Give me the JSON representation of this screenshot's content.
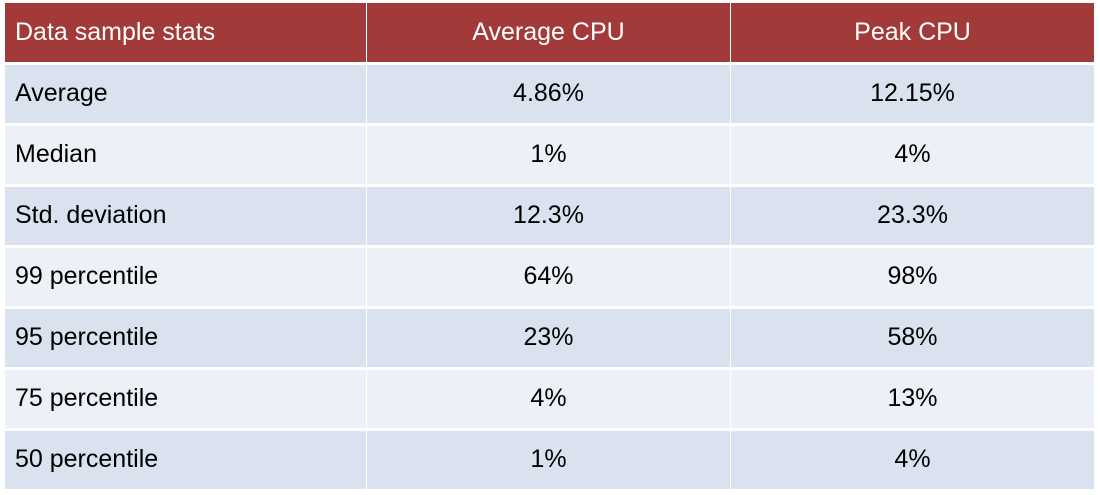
{
  "header": {
    "col1": "Data sample stats",
    "col2": "Average CPU",
    "col3": "Peak CPU"
  },
  "rows": [
    {
      "label": "Average",
      "avg": "4.86%",
      "peak": "12.15%"
    },
    {
      "label": "Median",
      "avg": "1%",
      "peak": "4%"
    },
    {
      "label": "Std. deviation",
      "avg": "12.3%",
      "peak": "23.3%"
    },
    {
      "label": "99 percentile",
      "avg": "64%",
      "peak": "98%"
    },
    {
      "label": "95 percentile",
      "avg": "23%",
      "peak": "58%"
    },
    {
      "label": "75 percentile",
      "avg": "4%",
      "peak": "13%"
    },
    {
      "label": "50 percentile",
      "avg": "1%",
      "peak": "4%"
    }
  ],
  "colors": {
    "header_bg": "#a23a3a",
    "row_band_dark": "#d9e2ee",
    "row_band_light": "#ecf1f7"
  }
}
